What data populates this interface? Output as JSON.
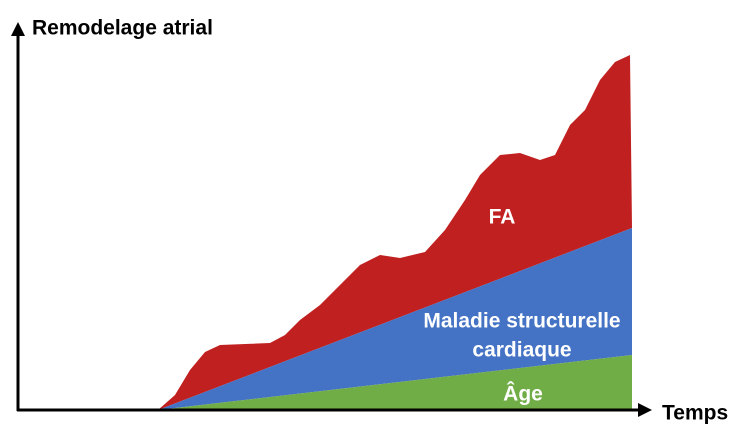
{
  "y_axis": {
    "label": "Remodelage atrial"
  },
  "x_axis": {
    "label": "Temps"
  },
  "areas": [
    {
      "label_lines": [
        "FA"
      ]
    },
    {
      "label_lines": [
        "Maladie structurelle",
        "cardiaque"
      ]
    },
    {
      "label_lines": [
        "Âge"
      ]
    }
  ]
}
